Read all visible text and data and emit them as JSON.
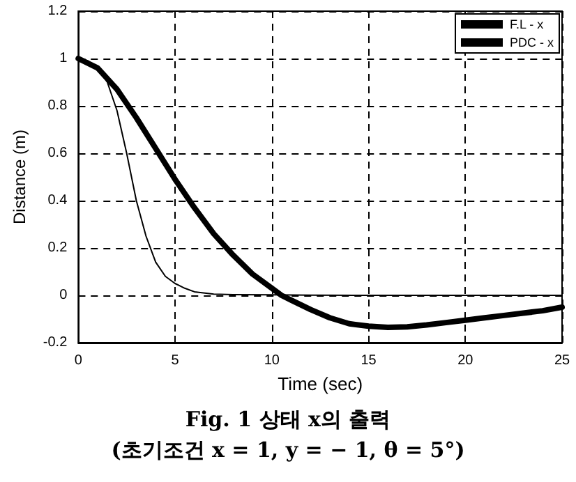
{
  "chart_data": {
    "type": "line",
    "xlabel": "Time (sec)",
    "ylabel": "Distance (m)",
    "annotations": [
      "Fig. 1 상태 x의 출력",
      "(초기조건 x = 1, y = − 1, θ = 5°)"
    ],
    "series": [
      {
        "name": "F.L - x",
        "color": "#000000",
        "x": [
          0,
          0.5,
          1,
          1.5,
          2,
          2.5,
          3,
          3.5,
          4,
          4.5,
          5,
          5.5,
          6,
          7,
          8,
          10,
          12,
          15,
          25
        ],
        "values": [
          1,
          0.99,
          0.96,
          0.9,
          0.78,
          0.6,
          0.4,
          0.25,
          0.14,
          0.08,
          0.05,
          0.03,
          0.015,
          0.005,
          0.003,
          0.002,
          0.001,
          0,
          0
        ]
      },
      {
        "name": "PDC - x",
        "color": "#000000",
        "x": [
          0,
          1,
          2,
          3,
          4,
          5,
          6,
          7,
          8,
          9,
          10,
          10.5,
          11,
          12,
          13,
          14,
          15,
          16,
          17,
          18,
          19,
          20,
          21,
          22,
          23,
          24,
          25
        ],
        "values": [
          1,
          0.96,
          0.87,
          0.75,
          0.62,
          0.49,
          0.37,
          0.26,
          0.17,
          0.09,
          0.03,
          0,
          -0.02,
          -0.06,
          -0.095,
          -0.12,
          -0.13,
          -0.135,
          -0.133,
          -0.125,
          -0.115,
          -0.105,
          -0.095,
          -0.085,
          -0.075,
          -0.065,
          -0.05
        ]
      }
    ],
    "xlim": [
      0,
      25
    ],
    "xticks": [
      0,
      5,
      10,
      15,
      20,
      25
    ],
    "ylim": [
      -0.2,
      1.2
    ],
    "yticks": [
      -0.2,
      0,
      0.2,
      0.4,
      0.6,
      0.8,
      1,
      1.2
    ],
    "grid": true,
    "legend": "top right",
    "marker": "none",
    "line_style": "solid"
  }
}
